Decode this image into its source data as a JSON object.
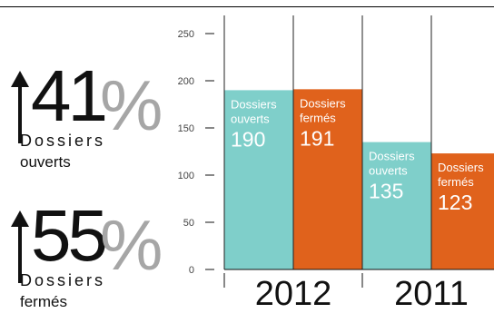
{
  "stats": [
    {
      "value": "41",
      "percent": "%",
      "label_line1": "Dossiers",
      "label_line2": "ouverts"
    },
    {
      "value": "55",
      "percent": "%",
      "label_line1": "Dossiers",
      "label_line2": "fermés"
    }
  ],
  "colors": {
    "opened": "#7fcfca",
    "closed": "#e0621c",
    "percent": "#a6a6a6"
  },
  "chart_data": {
    "type": "bar",
    "categories": [
      "2012",
      "2011"
    ],
    "series": [
      {
        "name": "Dossiers ouverts",
        "label": [
          "Dossiers",
          "ouverts"
        ],
        "values": [
          190,
          135
        ]
      },
      {
        "name": "Dossiers fermés",
        "label": [
          "Dossiers",
          "fermés"
        ],
        "values": [
          191,
          123
        ]
      }
    ],
    "yticks": [
      0,
      50,
      100,
      150,
      200,
      250
    ],
    "ylim": [
      0,
      280
    ],
    "grid": false,
    "title": "",
    "xlabel": "",
    "ylabel": ""
  }
}
